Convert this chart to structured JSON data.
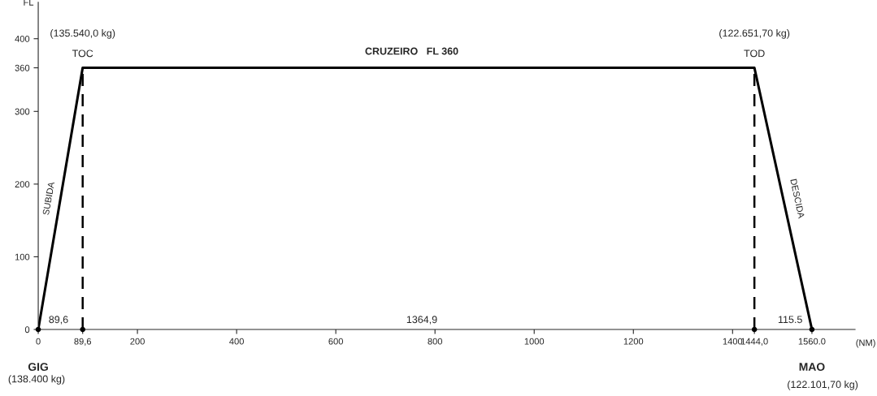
{
  "chart_data": {
    "type": "line",
    "xlabel": "(NM)",
    "ylabel": "FL",
    "x": [
      0,
      89.6,
      1444,
      1560
    ],
    "series": [
      {
        "color": "#000000",
        "values": [
          0,
          360,
          360,
          0
        ],
        "line_style": "solid",
        "marker": "none"
      },
      {
        "type": "scatter",
        "color": "#000000",
        "x": [
          0,
          89.6,
          1444,
          1560
        ],
        "values": [
          0,
          0,
          0,
          0
        ],
        "marker": "circle"
      }
    ],
    "xlim": [
      0,
      1647
    ],
    "ylim": [
      0,
      450
    ],
    "xticks": [
      0,
      {
        "value": 89.6,
        "label": "89,6"
      },
      200,
      400,
      600,
      800,
      1000,
      1200,
      1400,
      {
        "value": 1444,
        "label": "1444,0"
      },
      {
        "value": 1560,
        "label": "1560.0"
      }
    ],
    "yticks": [
      0,
      100,
      200,
      300,
      360,
      400
    ],
    "legend": false,
    "ref_lines": [
      {
        "axis": "x",
        "value": 89.6,
        "color": "#000000",
        "line_style": "dashed"
      },
      {
        "axis": "x",
        "value": 1444,
        "color": "#000000",
        "line_style": "dashed"
      }
    ],
    "annotations": [
      {
        "text": "(135.540,0 kg)",
        "x": 89.6,
        "y": 360
      },
      {
        "text": "TOC",
        "x": 89.6,
        "y": 360
      },
      {
        "text": "(122.651,70 kg)",
        "x": 1444,
        "y": 360
      },
      {
        "text": "TOD",
        "x": 1444,
        "y": 360
      },
      {
        "text": "CRUZEIRO   FL 360",
        "x": 753,
        "y": 360
      },
      {
        "text": "SUBIDA",
        "x": 45,
        "y": 180
      },
      {
        "text": "DESCIDA",
        "x": 1502,
        "y": 180
      },
      "89,6",
      "1364,9",
      "115.5",
      {
        "text": "GIG",
        "x": 0,
        "y": 0
      },
      "(138.400 kg)",
      {
        "text": "MAO",
        "x": 1560,
        "y": 0
      },
      "(122.101,70 kg)"
    ]
  }
}
